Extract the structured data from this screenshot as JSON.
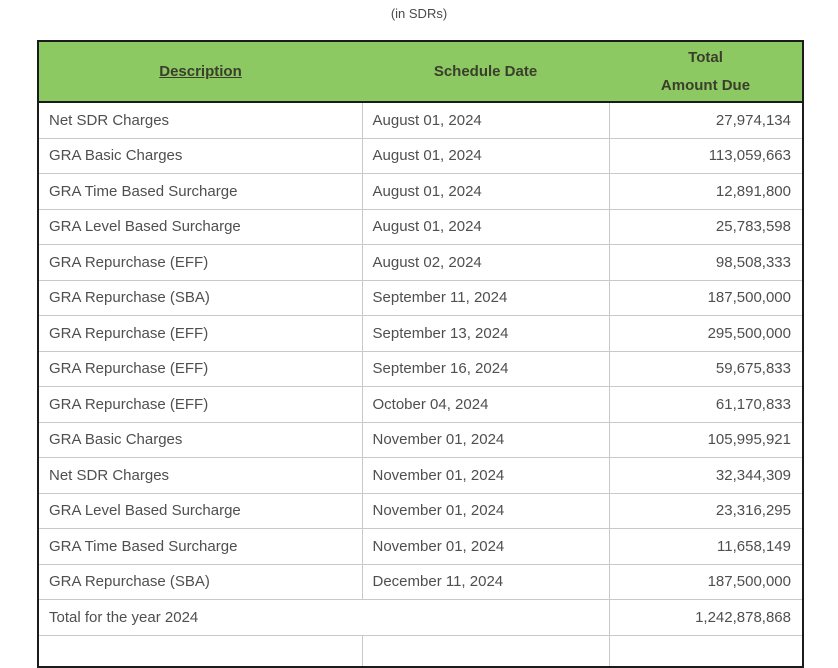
{
  "title": "(in SDRs)",
  "colors": {
    "header_bg": "#8dc963",
    "header_text": "#3a3e2b",
    "body_text": "#4f4f4f",
    "outer_border": "#1b1b1b",
    "row_divider": "#c9c9c9"
  },
  "table": {
    "headers": {
      "description": "Description",
      "schedule_date": "Schedule Date",
      "amount_line1": "Total",
      "amount_line2": "Amount Due"
    },
    "rows": [
      {
        "description": "Net SDR Charges",
        "schedule_date": "August 01, 2024",
        "amount": "27,974,134"
      },
      {
        "description": "GRA Basic Charges",
        "schedule_date": "August 01, 2024",
        "amount": "113,059,663"
      },
      {
        "description": "GRA Time Based Surcharge",
        "schedule_date": "August 01, 2024",
        "amount": "12,891,800"
      },
      {
        "description": "GRA Level Based Surcharge",
        "schedule_date": "August 01, 2024",
        "amount": "25,783,598"
      },
      {
        "description": "GRA Repurchase (EFF)",
        "schedule_date": "August 02, 2024",
        "amount": "98,508,333"
      },
      {
        "description": "GRA Repurchase (SBA)",
        "schedule_date": "September 11, 2024",
        "amount": "187,500,000"
      },
      {
        "description": "GRA Repurchase (EFF)",
        "schedule_date": "September 13, 2024",
        "amount": "295,500,000"
      },
      {
        "description": "GRA Repurchase (EFF)",
        "schedule_date": "September 16, 2024",
        "amount": "59,675,833"
      },
      {
        "description": "GRA Repurchase (EFF)",
        "schedule_date": "October 04, 2024",
        "amount": "61,170,833"
      },
      {
        "description": "GRA Basic Charges",
        "schedule_date": "November 01, 2024",
        "amount": "105,995,921"
      },
      {
        "description": "Net SDR Charges",
        "schedule_date": "November 01, 2024",
        "amount": "32,344,309"
      },
      {
        "description": "GRA Level Based Surcharge",
        "schedule_date": "November 01, 2024",
        "amount": "23,316,295"
      },
      {
        "description": "GRA Time Based Surcharge",
        "schedule_date": "November 01, 2024",
        "amount": "11,658,149"
      },
      {
        "description": "GRA Repurchase (SBA)",
        "schedule_date": "December 11, 2024",
        "amount": "187,500,000"
      }
    ],
    "total_row": {
      "label": "Total for the year 2024",
      "amount": "1,242,878,868"
    }
  }
}
